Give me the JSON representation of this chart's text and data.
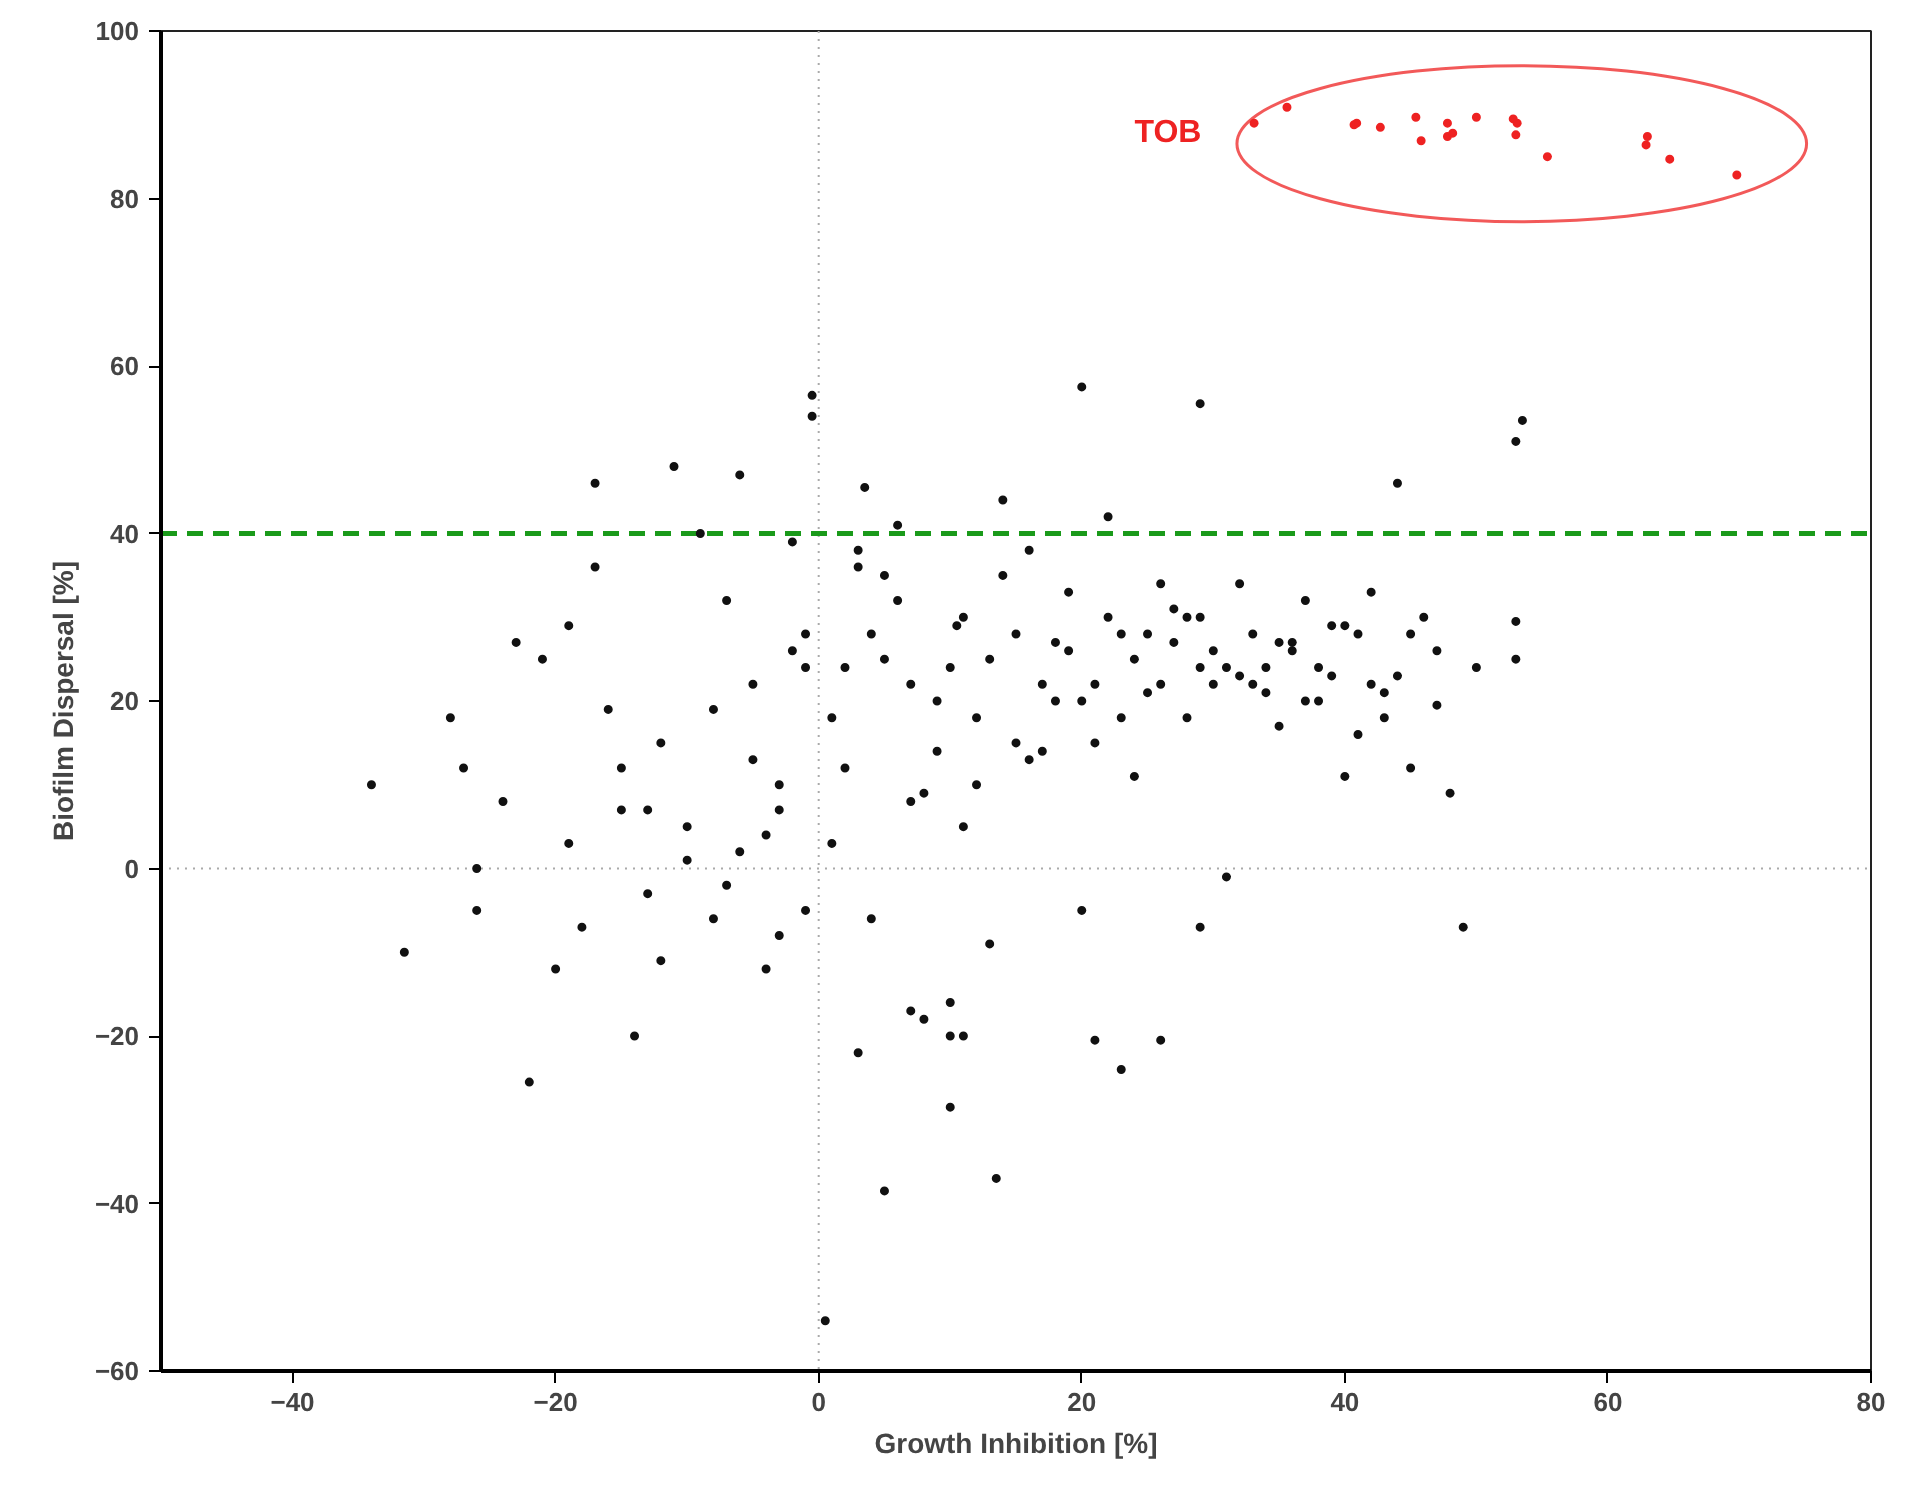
{
  "chart_data": {
    "type": "scatter",
    "xlabel": "Growth Inhibition [%]",
    "ylabel": "Biofilm Dispersal [%]",
    "xlim": [
      -50,
      80
    ],
    "ylim": [
      -60,
      100
    ],
    "xticks": [
      -40,
      -20,
      0,
      20,
      40,
      60,
      80
    ],
    "yticks": [
      -60,
      -40,
      -20,
      0,
      20,
      40,
      60,
      80,
      100
    ],
    "grid": false,
    "marker": "circle",
    "ref_lines": [
      {
        "axis": "x",
        "value": 0,
        "color": "#aaaaaa",
        "line_style": "dotted"
      },
      {
        "axis": "y",
        "value": 0,
        "color": "#aaaaaa",
        "line_style": "dotted"
      },
      {
        "axis": "y",
        "value": 40,
        "color": "#1a9a1a",
        "line_style": "dashed"
      }
    ],
    "series": [
      {
        "color": "#111111",
        "x": [
          0.5,
          5,
          13.5,
          10,
          -34,
          -31.5,
          -26,
          -22,
          -26,
          -20,
          -18,
          -14,
          -12,
          -8,
          -28,
          -27,
          -24,
          -23,
          -21,
          -19,
          -17,
          -16,
          -15,
          -13,
          -11,
          -10,
          -9,
          -7,
          -6,
          -5,
          -4,
          -3,
          -2,
          -1,
          -0.5,
          -19,
          -17,
          -12,
          -10,
          -7,
          -5,
          -4,
          -3,
          -2,
          -1,
          -15,
          -13,
          -8,
          -6,
          -3,
          -1,
          1,
          2,
          3,
          4,
          5,
          6,
          7,
          8,
          9,
          10,
          11,
          12,
          13,
          14,
          15,
          16,
          17,
          18,
          19,
          20,
          21,
          22,
          23,
          24,
          25,
          26,
          27,
          28,
          29,
          30,
          31,
          32,
          33,
          34,
          35,
          36,
          37,
          38,
          39,
          40,
          41,
          42,
          43,
          44,
          45,
          46,
          47,
          48,
          49,
          50,
          1,
          3,
          5,
          7,
          9,
          11,
          13,
          15,
          17,
          19,
          21,
          23,
          25,
          27,
          29,
          31,
          33,
          35,
          37,
          39,
          41,
          43,
          45,
          2,
          4,
          6,
          8,
          10,
          12,
          14,
          16,
          18,
          20,
          22,
          24,
          26,
          28,
          30,
          32,
          34,
          36,
          38,
          40,
          42,
          44,
          10.5,
          20,
          29,
          -0.5,
          3.5,
          53.5,
          53,
          53,
          53,
          47,
          29,
          23,
          21,
          26,
          7,
          3,
          10,
          11
        ],
        "values": [
          -54,
          -38.5,
          -37,
          -28.5,
          10,
          -10,
          -5,
          -25.5,
          0,
          -12,
          -7,
          -20,
          -11,
          -6,
          18,
          12,
          8,
          27,
          25,
          3,
          46,
          19,
          7,
          -3,
          48,
          5,
          40,
          -2,
          47,
          13,
          -12,
          10,
          26,
          -5,
          54,
          29,
          36,
          15,
          1,
          32,
          22,
          4,
          7,
          39,
          28,
          12,
          7,
          19,
          2,
          -8,
          24,
          3,
          12,
          38,
          -6,
          25,
          32,
          8,
          -18,
          20,
          -20,
          30,
          10,
          -9,
          44,
          15,
          38,
          22,
          20,
          26,
          -5,
          15,
          30,
          28,
          25,
          21,
          34,
          27,
          18,
          30,
          22,
          -1,
          34,
          28,
          24,
          17,
          26,
          32,
          20,
          23,
          11,
          28,
          33,
          21,
          23,
          12,
          30,
          26,
          9,
          -7,
          24,
          18,
          36,
          35,
          22,
          14,
          5,
          25,
          28,
          14,
          33,
          22,
          18,
          28,
          31,
          24,
          24,
          22,
          27,
          20,
          29,
          16,
          18,
          28,
          24,
          28,
          41,
          9,
          24,
          18,
          35,
          13,
          27,
          20,
          42,
          11,
          22,
          30,
          26,
          23,
          21,
          27,
          24,
          29,
          22,
          46,
          29,
          57.5,
          55.5,
          56.5,
          45.5,
          53.5,
          51,
          25,
          29.5,
          19.5,
          -7,
          -24,
          -20.5,
          -20.5,
          -17,
          -22,
          -16,
          -20
        ]
      },
      {
        "name": "TOB",
        "color": "#ee2222",
        "x": [
          33.1,
          35.6,
          40.7,
          40.9,
          42.7,
          45.4,
          45.8,
          47.8,
          47.8,
          48.2,
          50.0,
          52.8,
          53.1,
          53.0,
          55.4,
          63.0,
          62.9,
          64.7,
          69.8
        ],
        "values": [
          89.0,
          90.9,
          88.8,
          89.0,
          88.5,
          89.7,
          86.9,
          89.0,
          87.4,
          87.8,
          89.7,
          89.5,
          89.0,
          87.6,
          85.0,
          87.4,
          86.4,
          84.7,
          82.8
        ]
      }
    ]
  }
}
